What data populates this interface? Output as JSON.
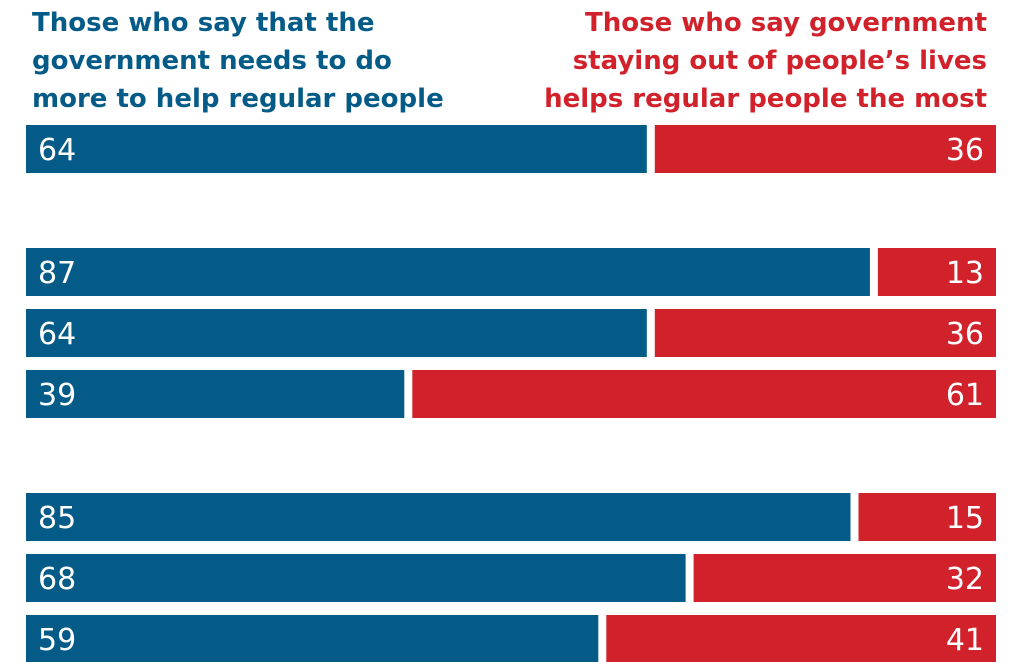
{
  "chart_data": {
    "type": "bar",
    "orientation": "horizontal",
    "stacked": true,
    "xlim": [
      0,
      100
    ],
    "series": [
      {
        "name": "Those who say that the\ngovernment needs to do\nmore to help regular people",
        "color": "#055b87",
        "values": [
          64,
          87,
          64,
          39,
          85,
          68,
          59
        ]
      },
      {
        "name": "Those who say government\nstaying out of people’s lives\nhelps regular people the most",
        "color": "#d1222c",
        "values": [
          36,
          13,
          36,
          61,
          15,
          32,
          41
        ]
      }
    ],
    "row_groups": [
      [
        0
      ],
      [
        1,
        2,
        3
      ],
      [
        4,
        5,
        6
      ]
    ],
    "grid": false,
    "legend": "top"
  }
}
